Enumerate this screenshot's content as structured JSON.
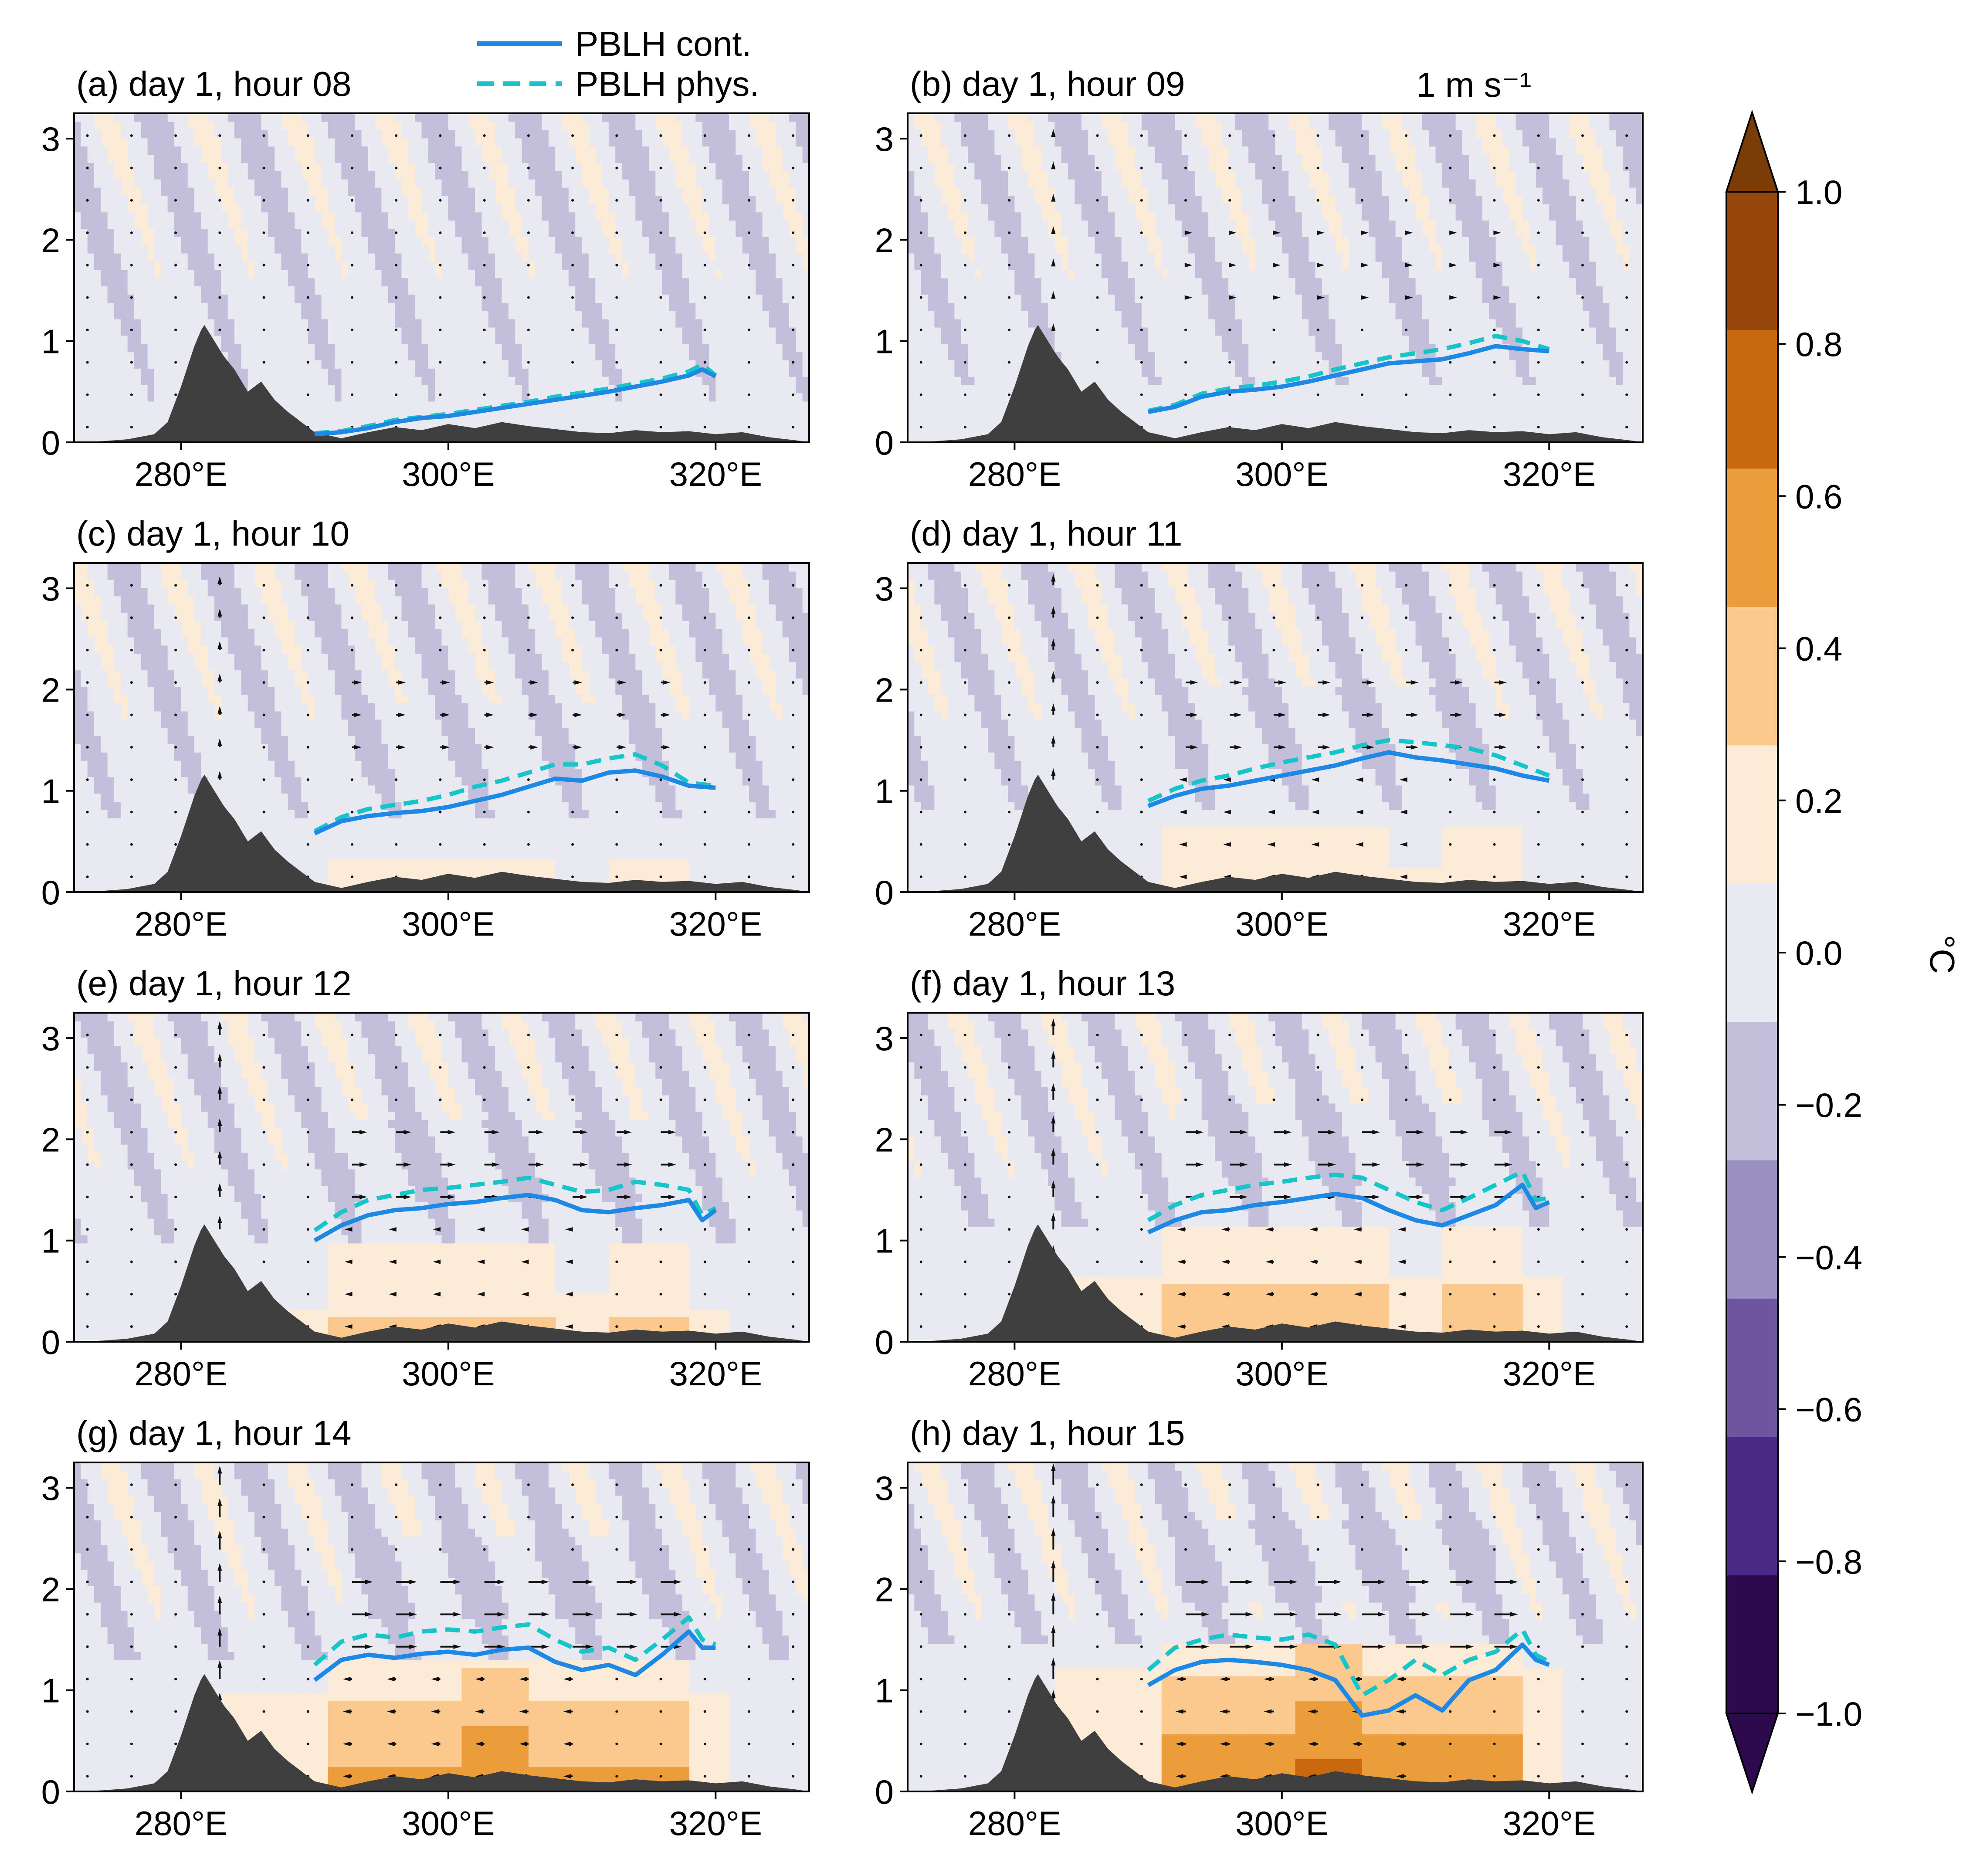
{
  "chart_data": {
    "type": "contour",
    "x_ticks": [
      "280°E",
      "300°E",
      "320°E"
    ],
    "x_tick_values": [
      280,
      300,
      320
    ],
    "y_ticks": [
      "0",
      "1",
      "2",
      "3"
    ],
    "xlim": [
      272,
      327
    ],
    "ylim": [
      0,
      3.25
    ],
    "legend": [
      {
        "name": "PBLH cont.",
        "color": "#1e88e5",
        "style": "solid"
      },
      {
        "name": "PBLH phys.",
        "color": "#17c5c9",
        "style": "dashed"
      }
    ],
    "quiver_key_label": "1 m s⁻¹",
    "colorbar": {
      "label": "°C",
      "ticks": [
        "1.0",
        "0.8",
        "0.6",
        "0.4",
        "0.2",
        "0.0",
        "−0.2",
        "−0.4",
        "−0.6",
        "−0.8",
        "−1.0"
      ],
      "levels": [
        -1.0,
        -0.8,
        -0.6,
        -0.4,
        -0.2,
        0.0,
        0.2,
        0.4,
        0.6,
        0.8,
        1.0
      ],
      "colors": [
        "#2d0a4e",
        "#4b2a86",
        "#6f54a0",
        "#9a91c2",
        "#c3bfdb",
        "#e9e9f1",
        "#fcebd6",
        "#fbc98d",
        "#eb9d3c",
        "#c8690f",
        "#97470b"
      ],
      "extend_low": "#2d0a4e",
      "extend_high": "#7a3d07"
    },
    "topography": [
      [
        272,
        0
      ],
      [
        274,
        0.01
      ],
      [
        276,
        0.03
      ],
      [
        278,
        0.08
      ],
      [
        279,
        0.2
      ],
      [
        280,
        0.55
      ],
      [
        281,
        0.95
      ],
      [
        281.7,
        1.17
      ],
      [
        282.5,
        1.0
      ],
      [
        283.2,
        0.85
      ],
      [
        284,
        0.72
      ],
      [
        285,
        0.5
      ],
      [
        286,
        0.6
      ],
      [
        287,
        0.42
      ],
      [
        288,
        0.3
      ],
      [
        290,
        0.1
      ],
      [
        292,
        0.04
      ],
      [
        294,
        0.1
      ],
      [
        296,
        0.15
      ],
      [
        298,
        0.12
      ],
      [
        300,
        0.18
      ],
      [
        302,
        0.14
      ],
      [
        304,
        0.2
      ],
      [
        306,
        0.16
      ],
      [
        308,
        0.13
      ],
      [
        310,
        0.1
      ],
      [
        312,
        0.09
      ],
      [
        314,
        0.12
      ],
      [
        316,
        0.1
      ],
      [
        318,
        0.11
      ],
      [
        320,
        0.08
      ],
      [
        322,
        0.1
      ],
      [
        324,
        0.05
      ],
      [
        326,
        0.02
      ],
      [
        327,
        0
      ]
    ],
    "panels": [
      {
        "title": "(a) day 1, hour 08",
        "hour": 8,
        "pblh_cont": [
          [
            290,
            0.08
          ],
          [
            292,
            0.1
          ],
          [
            294,
            0.14
          ],
          [
            296,
            0.2
          ],
          [
            298,
            0.24
          ],
          [
            300,
            0.26
          ],
          [
            302,
            0.3
          ],
          [
            304,
            0.34
          ],
          [
            306,
            0.38
          ],
          [
            308,
            0.42
          ],
          [
            310,
            0.46
          ],
          [
            312,
            0.5
          ],
          [
            314,
            0.55
          ],
          [
            316,
            0.6
          ],
          [
            318,
            0.66
          ],
          [
            319,
            0.72
          ],
          [
            320,
            0.65
          ]
        ],
        "pblh_phys": [
          [
            290,
            0.09
          ],
          [
            292,
            0.11
          ],
          [
            294,
            0.16
          ],
          [
            296,
            0.22
          ],
          [
            298,
            0.25
          ],
          [
            300,
            0.28
          ],
          [
            302,
            0.32
          ],
          [
            304,
            0.36
          ],
          [
            306,
            0.4
          ],
          [
            308,
            0.45
          ],
          [
            310,
            0.49
          ],
          [
            312,
            0.53
          ],
          [
            314,
            0.58
          ],
          [
            316,
            0.63
          ],
          [
            318,
            0.7
          ],
          [
            319,
            0.77
          ],
          [
            320,
            0.66
          ]
        ]
      },
      {
        "title": "(b) day 1, hour 09",
        "hour": 9,
        "pblh_cont": [
          [
            290,
            0.3
          ],
          [
            292,
            0.35
          ],
          [
            294,
            0.45
          ],
          [
            296,
            0.5
          ],
          [
            298,
            0.52
          ],
          [
            300,
            0.55
          ],
          [
            302,
            0.6
          ],
          [
            304,
            0.66
          ],
          [
            306,
            0.72
          ],
          [
            308,
            0.78
          ],
          [
            310,
            0.8
          ],
          [
            312,
            0.82
          ],
          [
            314,
            0.88
          ],
          [
            316,
            0.95
          ],
          [
            318,
            0.92
          ],
          [
            320,
            0.9
          ]
        ],
        "pblh_phys": [
          [
            290,
            0.31
          ],
          [
            292,
            0.37
          ],
          [
            294,
            0.48
          ],
          [
            296,
            0.53
          ],
          [
            298,
            0.56
          ],
          [
            300,
            0.6
          ],
          [
            302,
            0.65
          ],
          [
            304,
            0.72
          ],
          [
            306,
            0.78
          ],
          [
            308,
            0.84
          ],
          [
            310,
            0.88
          ],
          [
            312,
            0.92
          ],
          [
            314,
            0.98
          ],
          [
            316,
            1.05
          ],
          [
            318,
            1.0
          ],
          [
            320,
            0.92
          ]
        ]
      },
      {
        "title": "(c) day 1, hour 10",
        "hour": 10,
        "pblh_cont": [
          [
            290,
            0.58
          ],
          [
            292,
            0.7
          ],
          [
            294,
            0.75
          ],
          [
            296,
            0.78
          ],
          [
            298,
            0.8
          ],
          [
            300,
            0.84
          ],
          [
            302,
            0.9
          ],
          [
            304,
            0.96
          ],
          [
            306,
            1.04
          ],
          [
            308,
            1.12
          ],
          [
            310,
            1.1
          ],
          [
            312,
            1.18
          ],
          [
            314,
            1.2
          ],
          [
            316,
            1.14
          ],
          [
            318,
            1.05
          ],
          [
            320,
            1.03
          ]
        ],
        "pblh_phys": [
          [
            290,
            0.6
          ],
          [
            292,
            0.74
          ],
          [
            294,
            0.82
          ],
          [
            296,
            0.86
          ],
          [
            298,
            0.9
          ],
          [
            300,
            0.96
          ],
          [
            302,
            1.04
          ],
          [
            304,
            1.1
          ],
          [
            306,
            1.18
          ],
          [
            308,
            1.26
          ],
          [
            310,
            1.26
          ],
          [
            312,
            1.32
          ],
          [
            314,
            1.36
          ],
          [
            316,
            1.25
          ],
          [
            318,
            1.08
          ],
          [
            320,
            1.05
          ]
        ]
      },
      {
        "title": "(d) day 1, hour 11",
        "hour": 11,
        "pblh_cont": [
          [
            290,
            0.85
          ],
          [
            292,
            0.95
          ],
          [
            294,
            1.02
          ],
          [
            296,
            1.05
          ],
          [
            298,
            1.1
          ],
          [
            300,
            1.15
          ],
          [
            302,
            1.2
          ],
          [
            304,
            1.25
          ],
          [
            306,
            1.32
          ],
          [
            308,
            1.38
          ],
          [
            310,
            1.33
          ],
          [
            312,
            1.3
          ],
          [
            314,
            1.26
          ],
          [
            316,
            1.22
          ],
          [
            318,
            1.15
          ],
          [
            320,
            1.1
          ]
        ],
        "pblh_phys": [
          [
            290,
            0.9
          ],
          [
            292,
            1.02
          ],
          [
            294,
            1.1
          ],
          [
            296,
            1.15
          ],
          [
            298,
            1.22
          ],
          [
            300,
            1.28
          ],
          [
            302,
            1.33
          ],
          [
            304,
            1.38
          ],
          [
            306,
            1.45
          ],
          [
            308,
            1.5
          ],
          [
            310,
            1.48
          ],
          [
            312,
            1.45
          ],
          [
            314,
            1.42
          ],
          [
            316,
            1.35
          ],
          [
            318,
            1.25
          ],
          [
            320,
            1.15
          ]
        ]
      },
      {
        "title": "(e) day 1, hour 12",
        "hour": 12,
        "pblh_cont": [
          [
            290,
            1.0
          ],
          [
            292,
            1.15
          ],
          [
            294,
            1.25
          ],
          [
            296,
            1.3
          ],
          [
            298,
            1.32
          ],
          [
            300,
            1.36
          ],
          [
            302,
            1.38
          ],
          [
            304,
            1.42
          ],
          [
            306,
            1.45
          ],
          [
            308,
            1.4
          ],
          [
            310,
            1.3
          ],
          [
            312,
            1.28
          ],
          [
            314,
            1.32
          ],
          [
            316,
            1.35
          ],
          [
            318,
            1.4
          ],
          [
            319,
            1.2
          ],
          [
            320,
            1.3
          ]
        ],
        "pblh_phys": [
          [
            290,
            1.1
          ],
          [
            292,
            1.28
          ],
          [
            294,
            1.4
          ],
          [
            296,
            1.45
          ],
          [
            298,
            1.5
          ],
          [
            300,
            1.52
          ],
          [
            302,
            1.55
          ],
          [
            304,
            1.58
          ],
          [
            306,
            1.62
          ],
          [
            308,
            1.55
          ],
          [
            310,
            1.48
          ],
          [
            312,
            1.5
          ],
          [
            314,
            1.58
          ],
          [
            316,
            1.55
          ],
          [
            318,
            1.5
          ],
          [
            319,
            1.25
          ],
          [
            320,
            1.32
          ]
        ]
      },
      {
        "title": "(f) day 1, hour 13",
        "hour": 13,
        "pblh_cont": [
          [
            290,
            1.08
          ],
          [
            292,
            1.2
          ],
          [
            294,
            1.28
          ],
          [
            296,
            1.3
          ],
          [
            298,
            1.35
          ],
          [
            300,
            1.38
          ],
          [
            302,
            1.42
          ],
          [
            304,
            1.46
          ],
          [
            306,
            1.42
          ],
          [
            308,
            1.3
          ],
          [
            310,
            1.2
          ],
          [
            312,
            1.15
          ],
          [
            314,
            1.25
          ],
          [
            316,
            1.35
          ],
          [
            318,
            1.55
          ],
          [
            319,
            1.32
          ],
          [
            320,
            1.38
          ]
        ],
        "pblh_phys": [
          [
            290,
            1.2
          ],
          [
            292,
            1.35
          ],
          [
            294,
            1.45
          ],
          [
            296,
            1.5
          ],
          [
            298,
            1.55
          ],
          [
            300,
            1.58
          ],
          [
            302,
            1.62
          ],
          [
            304,
            1.65
          ],
          [
            306,
            1.62
          ],
          [
            308,
            1.5
          ],
          [
            310,
            1.38
          ],
          [
            312,
            1.3
          ],
          [
            314,
            1.42
          ],
          [
            316,
            1.55
          ],
          [
            318,
            1.68
          ],
          [
            319,
            1.4
          ],
          [
            320,
            1.42
          ]
        ]
      },
      {
        "title": "(g) day 1, hour 14",
        "hour": 14,
        "pblh_cont": [
          [
            290,
            1.1
          ],
          [
            292,
            1.3
          ],
          [
            294,
            1.35
          ],
          [
            296,
            1.32
          ],
          [
            298,
            1.36
          ],
          [
            300,
            1.38
          ],
          [
            302,
            1.35
          ],
          [
            304,
            1.4
          ],
          [
            306,
            1.42
          ],
          [
            308,
            1.28
          ],
          [
            310,
            1.2
          ],
          [
            312,
            1.25
          ],
          [
            314,
            1.15
          ],
          [
            316,
            1.35
          ],
          [
            318,
            1.58
          ],
          [
            319,
            1.42
          ],
          [
            320,
            1.42
          ]
        ],
        "pblh_phys": [
          [
            290,
            1.25
          ],
          [
            292,
            1.48
          ],
          [
            294,
            1.55
          ],
          [
            296,
            1.52
          ],
          [
            298,
            1.58
          ],
          [
            300,
            1.6
          ],
          [
            302,
            1.58
          ],
          [
            304,
            1.62
          ],
          [
            306,
            1.65
          ],
          [
            308,
            1.5
          ],
          [
            310,
            1.38
          ],
          [
            312,
            1.42
          ],
          [
            314,
            1.3
          ],
          [
            316,
            1.5
          ],
          [
            318,
            1.72
          ],
          [
            319,
            1.5
          ],
          [
            320,
            1.45
          ]
        ]
      },
      {
        "title": "(h) day 1, hour 15",
        "hour": 15,
        "pblh_cont": [
          [
            290,
            1.05
          ],
          [
            292,
            1.2
          ],
          [
            294,
            1.28
          ],
          [
            296,
            1.3
          ],
          [
            298,
            1.28
          ],
          [
            300,
            1.25
          ],
          [
            302,
            1.2
          ],
          [
            304,
            1.1
          ],
          [
            306,
            0.75
          ],
          [
            308,
            0.8
          ],
          [
            310,
            0.95
          ],
          [
            312,
            0.8
          ],
          [
            314,
            1.1
          ],
          [
            316,
            1.2
          ],
          [
            318,
            1.45
          ],
          [
            319,
            1.3
          ],
          [
            320,
            1.25
          ]
        ],
        "pblh_phys": [
          [
            290,
            1.2
          ],
          [
            292,
            1.42
          ],
          [
            294,
            1.5
          ],
          [
            296,
            1.55
          ],
          [
            298,
            1.52
          ],
          [
            300,
            1.5
          ],
          [
            302,
            1.55
          ],
          [
            304,
            1.45
          ],
          [
            306,
            0.95
          ],
          [
            308,
            1.1
          ],
          [
            310,
            1.3
          ],
          [
            312,
            1.15
          ],
          [
            314,
            1.3
          ],
          [
            316,
            1.38
          ],
          [
            318,
            1.6
          ],
          [
            319,
            1.35
          ],
          [
            320,
            1.28
          ]
        ]
      }
    ]
  }
}
